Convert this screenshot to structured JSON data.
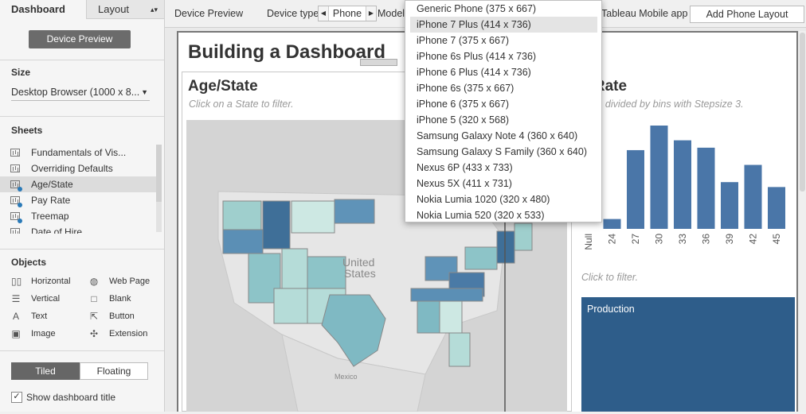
{
  "left_panel": {
    "tabs": {
      "dashboard": "Dashboard",
      "layout": "Layout"
    },
    "device_preview_button": "Device Preview",
    "size": {
      "title": "Size",
      "value": "Desktop Browser (1000 x 8..."
    },
    "sheets": {
      "title": "Sheets",
      "items": [
        {
          "label": "Fundamentals of Vis...",
          "used": false,
          "selected": false
        },
        {
          "label": "Overriding Defaults",
          "used": false,
          "selected": false
        },
        {
          "label": "Age/State",
          "used": true,
          "selected": true
        },
        {
          "label": "Pay Rate",
          "used": true,
          "selected": false
        },
        {
          "label": "Treemap",
          "used": true,
          "selected": false
        },
        {
          "label": "Date of Hire",
          "used": false,
          "selected": false
        }
      ]
    },
    "objects": {
      "title": "Objects",
      "items": [
        {
          "label": "Horizontal",
          "icon": "horizontal-container-icon"
        },
        {
          "label": "Web Page",
          "icon": "globe-icon"
        },
        {
          "label": "Vertical",
          "icon": "vertical-container-icon"
        },
        {
          "label": "Blank",
          "icon": "blank-icon"
        },
        {
          "label": "Text",
          "icon": "text-icon"
        },
        {
          "label": "Button",
          "icon": "button-icon"
        },
        {
          "label": "Image",
          "icon": "image-icon"
        },
        {
          "label": "Extension",
          "icon": "puzzle-icon"
        }
      ]
    },
    "tiled_label": "Tiled",
    "floating_label": "Floating",
    "show_title_label": "Show dashboard title",
    "show_title_checked": true
  },
  "toolbar": {
    "device_preview": "Device Preview",
    "device_type_label": "Device type",
    "device_type_value": "Phone",
    "model_label": "Model",
    "app_label": "Tableau Mobile app",
    "add_layout_button": "Add Phone Layout"
  },
  "model_dropdown": {
    "selected": "iPhone 7 Plus (414 x 736)",
    "options": [
      "Generic Phone (375 x 667)",
      "iPhone 7 Plus (414 x 736)",
      "iPhone 7 (375 x 667)",
      "iPhone 6s Plus (414 x 736)",
      "iPhone 6 Plus (414 x 736)",
      "iPhone 6s (375 x 667)",
      "iPhone 6 (375 x 667)",
      "iPhone 5 (320 x 568)",
      "Samsung Galaxy Note 4 (360 x 640)",
      "Samsung Galaxy S Family (360 x 640)",
      "Nexus 6P (433 x 733)",
      "Nexus 5X (411 x 731)",
      "Nokia Lumia 1020 (320 x 480)",
      "Nokia Lumia 520 (320 x 533)"
    ]
  },
  "dashboard": {
    "title": "Building a Dashboard",
    "age_state": {
      "title": "Age/State",
      "subtitle": "Click on a State to filter.",
      "map_labels": {
        "country": "United",
        "country2": "States",
        "mexico": "Mexico"
      }
    },
    "pay_rate": {
      "title": "y Rate",
      "subtitle": "Rate divided by bins with Stepsize 3.",
      "click_filter": "Click to filter."
    },
    "production_label": "Production",
    "colors": {
      "bar": "#4a76a8",
      "production": "#2e5d8a"
    }
  },
  "chart_data": {
    "type": "bar",
    "categories": [
      "Null",
      "24",
      "27",
      "30",
      "33",
      "36",
      "39",
      "42",
      "45"
    ],
    "values": [
      0,
      4,
      32,
      42,
      36,
      33,
      19,
      26,
      17
    ]
  }
}
